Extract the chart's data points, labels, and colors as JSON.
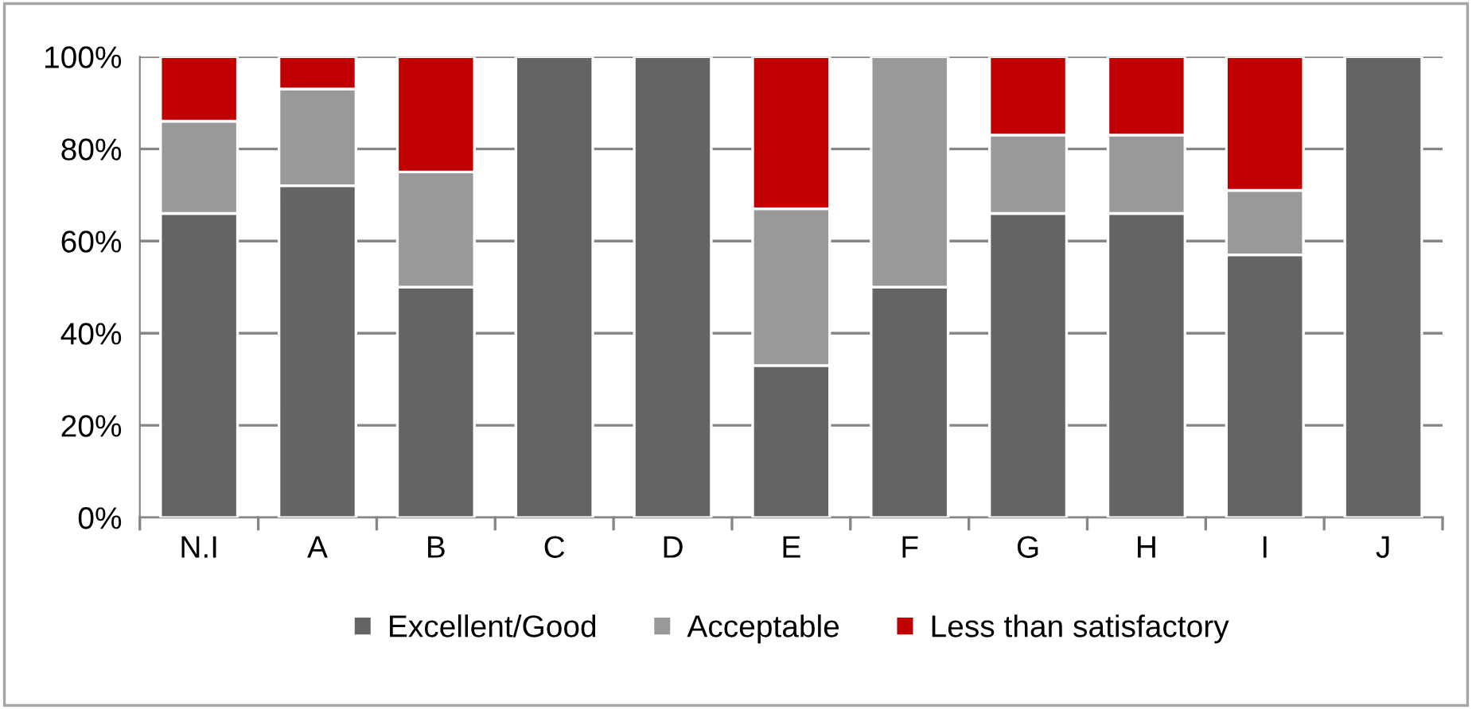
{
  "chart_data": {
    "type": "bar",
    "stacked": true,
    "categories": [
      "N.I",
      "A",
      "B",
      "C",
      "D",
      "E",
      "F",
      "G",
      "H",
      "I",
      "J"
    ],
    "series": [
      {
        "name": "Excellent/Good",
        "color": "#646464",
        "values": [
          66,
          72,
          50,
          100,
          100,
          33,
          50,
          66,
          66,
          57,
          100
        ]
      },
      {
        "name": "Acceptable",
        "color": "#999999",
        "values": [
          20,
          21,
          25,
          0,
          0,
          34,
          50,
          17,
          17,
          14,
          0
        ]
      },
      {
        "name": "Less than satisfactory",
        "color": "#c00000",
        "values": [
          14,
          7,
          25,
          0,
          0,
          33,
          0,
          17,
          17,
          29,
          0
        ]
      }
    ],
    "ylim": [
      0,
      100
    ],
    "yticks": [
      {
        "value": 0,
        "label": "0%"
      },
      {
        "value": 20,
        "label": "20%"
      },
      {
        "value": 40,
        "label": "40%"
      },
      {
        "value": 60,
        "label": "60%"
      },
      {
        "value": 80,
        "label": "80%"
      },
      {
        "value": 100,
        "label": "100%"
      }
    ],
    "grid": "y",
    "legend": "bottom"
  }
}
